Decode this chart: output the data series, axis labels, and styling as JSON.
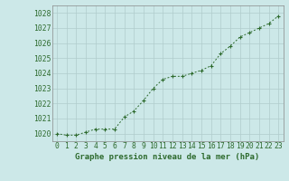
{
  "x": [
    0,
    1,
    2,
    3,
    4,
    5,
    6,
    7,
    8,
    9,
    10,
    11,
    12,
    13,
    14,
    15,
    16,
    17,
    18,
    19,
    20,
    21,
    22,
    23
  ],
  "y": [
    1020.0,
    1019.9,
    1019.9,
    1020.1,
    1020.3,
    1020.3,
    1020.3,
    1021.1,
    1021.5,
    1022.2,
    1023.0,
    1023.6,
    1023.8,
    1023.8,
    1024.0,
    1024.2,
    1024.5,
    1025.3,
    1025.8,
    1026.4,
    1026.7,
    1027.0,
    1027.3,
    1027.8
  ],
  "ylim": [
    1019.5,
    1028.5
  ],
  "yticks": [
    1020,
    1021,
    1022,
    1023,
    1024,
    1025,
    1026,
    1027,
    1028
  ],
  "xticks": [
    0,
    1,
    2,
    3,
    4,
    5,
    6,
    7,
    8,
    9,
    10,
    11,
    12,
    13,
    14,
    15,
    16,
    17,
    18,
    19,
    20,
    21,
    22,
    23
  ],
  "xlabel": "Graphe pression niveau de la mer (hPa)",
  "line_color": "#2d6a2d",
  "marker_color": "#2d6a2d",
  "bg_color": "#cce8e8",
  "grid_color": "#b0cccc",
  "tick_label_color": "#2d6a2d",
  "xlabel_color": "#2d6a2d",
  "border_color": "#888888",
  "xlabel_fontsize": 6.5,
  "tick_fontsize": 5.8
}
